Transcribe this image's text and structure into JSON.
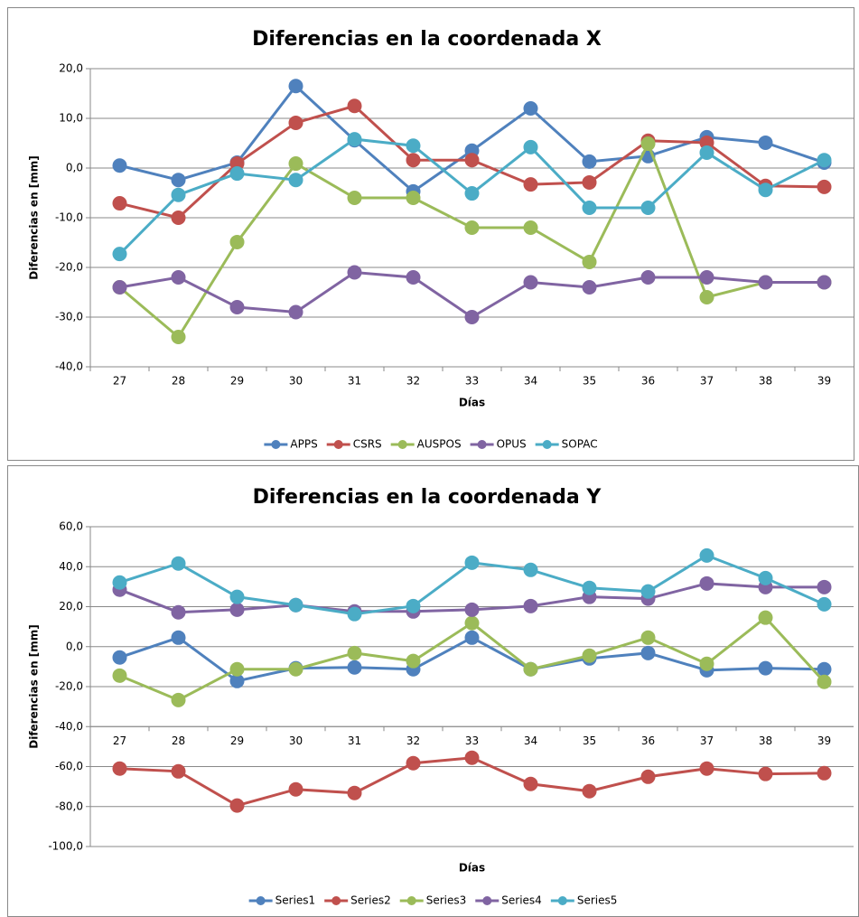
{
  "chart_data": [
    {
      "type": "line",
      "title": "Diferencias en la coordenada X",
      "x_label": "Días",
      "y_label": "Diferencias en [mm]",
      "categories": [
        "27",
        "28",
        "29",
        "30",
        "31",
        "32",
        "33",
        "34",
        "35",
        "36",
        "37",
        "38",
        "39"
      ],
      "ylim": [
        -40,
        20
      ],
      "yticks": [
        {
          "value": 20,
          "label": "20,0"
        },
        {
          "value": 10,
          "label": "10,0"
        },
        {
          "value": 0,
          "label": "0,0"
        },
        {
          "value": -10,
          "label": "-10,0"
        },
        {
          "value": -20,
          "label": "-20,0"
        },
        {
          "value": -30,
          "label": "-30,0"
        },
        {
          "value": -40,
          "label": "-40,0"
        }
      ],
      "grid": true,
      "x_axis_at": -40,
      "legend": "bottom",
      "series": [
        {
          "name": "APPS",
          "color": "#4f81bd",
          "values": [
            0.5,
            -2.4,
            1.1,
            16.5,
            5.6,
            -4.7,
            3.5,
            12,
            1.3,
            2.4,
            6.2,
            5.1,
            1.1
          ]
        },
        {
          "name": "CSRS",
          "color": "#c0504d",
          "values": [
            -7.1,
            -10,
            0.9,
            9.1,
            12.5,
            1.6,
            1.6,
            -3.3,
            -2.9,
            5.5,
            5.1,
            -3.6,
            -3.8
          ]
        },
        {
          "name": "AUSPOS",
          "color": "#9bbb59",
          "values": [
            -24,
            -34,
            -14.9,
            0.9,
            -6,
            -6,
            -12,
            -12,
            -18.9,
            4.9,
            -26,
            -23,
            -23
          ]
        },
        {
          "name": "OPUS",
          "color": "#8064a2",
          "values": [
            -24,
            -22,
            -28,
            -29,
            -21,
            -22,
            -30,
            -23,
            -24,
            -22,
            -22,
            -23,
            -23
          ]
        },
        {
          "name": "SOPAC",
          "color": "#4bacc6",
          "values": [
            -17.3,
            -5.4,
            -1.1,
            -2.4,
            5.8,
            4.5,
            -5.1,
            4.2,
            -8,
            -8,
            3.1,
            -4.4,
            1.6
          ]
        }
      ]
    },
    {
      "type": "line",
      "title": "Diferencias en la coordenada Y",
      "x_label": "Días",
      "y_label": "Diferencias en [mm]",
      "categories": [
        "27",
        "28",
        "29",
        "30",
        "31",
        "32",
        "33",
        "34",
        "35",
        "36",
        "37",
        "38",
        "39"
      ],
      "ylim": [
        -100,
        60
      ],
      "yticks": [
        {
          "value": 60,
          "label": "60,0"
        },
        {
          "value": 40,
          "label": "40,0"
        },
        {
          "value": 20,
          "label": "20,0"
        },
        {
          "value": 0,
          "label": "0,0"
        },
        {
          "value": -20,
          "label": "-20,0"
        },
        {
          "value": -40,
          "label": "-40,0"
        },
        {
          "value": -60,
          "label": "-60,0"
        },
        {
          "value": -80,
          "label": "-80,0"
        },
        {
          "value": -100,
          "label": "-100,0"
        }
      ],
      "grid": true,
      "x_axis_at": -40,
      "legend": "bottom",
      "series": [
        {
          "name": "Series1",
          "color": "#4f81bd",
          "values": [
            -5.4,
            4.5,
            -17.2,
            -10.8,
            -10.4,
            -11.3,
            4.5,
            -11.3,
            -5.9,
            -3.2,
            -11.8,
            -10.8,
            -11.3
          ]
        },
        {
          "name": "Series2",
          "color": "#c0504d",
          "values": [
            -61,
            -62.4,
            -79.5,
            -71.4,
            -73.2,
            -58.3,
            -55.6,
            -68.7,
            -72.3,
            -65.1,
            -61,
            -63.7,
            -63.3
          ]
        },
        {
          "name": "Series3",
          "color": "#9bbb59",
          "values": [
            -14.5,
            -26.7,
            -11.3,
            -11.3,
            -3.2,
            -7.2,
            11.8,
            -11.3,
            -4.5,
            4.5,
            -8.6,
            14.5,
            -17.6
          ]
        },
        {
          "name": "Series4",
          "color": "#8064a2",
          "values": [
            28.5,
            17.2,
            18.5,
            20.8,
            17.6,
            17.6,
            18.5,
            20.3,
            24.9,
            24,
            31.6,
            29.8,
            29.8
          ]
        },
        {
          "name": "Series5",
          "color": "#4bacc6",
          "values": [
            32.1,
            41.6,
            24.9,
            20.8,
            16.3,
            20.3,
            42,
            38.4,
            29.4,
            27.6,
            45.6,
            34.3,
            21.2
          ]
        }
      ]
    }
  ]
}
